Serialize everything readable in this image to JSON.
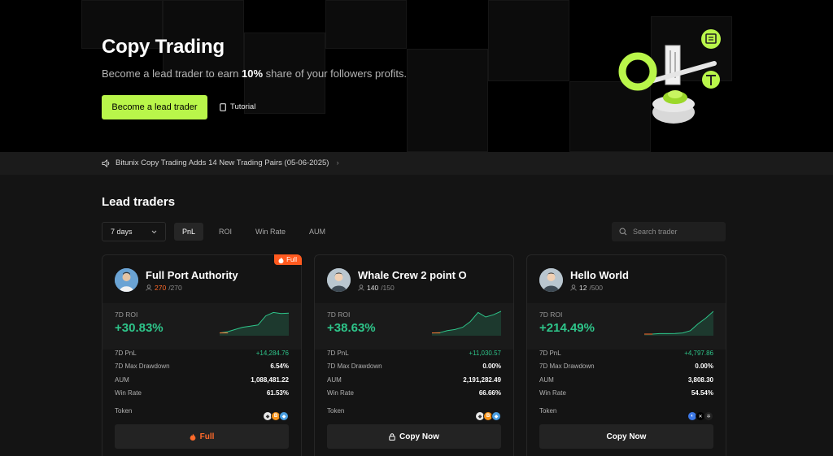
{
  "hero": {
    "title": "Copy Trading",
    "subtitle_before": "Become a lead trader to earn ",
    "subtitle_highlight": "10%",
    "subtitle_after": " share of your followers profits.",
    "cta_label": "Become a lead trader",
    "tutorial_label": "Tutorial",
    "accent_color": "#b9f64a"
  },
  "announcement": {
    "text": "Bitunix Copy Trading Adds 14 New Trading Pairs (05-06-2025)",
    "icon": "speaker-icon"
  },
  "section": {
    "title": "Lead traders",
    "period_value": "7 days",
    "tabs": [
      {
        "label": "PnL",
        "active": true
      },
      {
        "label": "ROI",
        "active": false
      },
      {
        "label": "Win Rate",
        "active": false
      },
      {
        "label": "AUM",
        "active": false
      }
    ],
    "search_placeholder": "Search trader"
  },
  "labels": {
    "roi": "7D ROI",
    "pnl": "7D PnL",
    "drawdown": "7D Max Drawdown",
    "aum": "AUM",
    "win_rate": "Win Rate",
    "token": "Token"
  },
  "traders": [
    {
      "name": "Full Port Authority",
      "followers_current": "270",
      "followers_max": "/270",
      "badge": "Full",
      "roi": "+30.83%",
      "pnl": "+14,284.76",
      "drawdown": "6.54%",
      "aum": "1,088,481.22",
      "win_rate": "61.53%",
      "tokens": [
        "ETH",
        "BTC",
        "ETH2"
      ],
      "action": "Full",
      "roi_series": [
        0.05,
        0.1,
        0.2,
        0.3,
        0.35,
        0.4,
        0.8,
        0.95,
        0.9,
        0.92
      ]
    },
    {
      "name": "Whale Crew 2 point O",
      "followers_current": "140",
      "followers_max": "/150",
      "badge": "",
      "roi": "+38.63%",
      "pnl": "+11,030.57",
      "drawdown": "0.00%",
      "aum": "2,191,282.49",
      "win_rate": "66.66%",
      "tokens": [
        "ETH",
        "BTC",
        "ETH2"
      ],
      "action": "Copy Now",
      "roi_series": [
        0.05,
        0.06,
        0.15,
        0.2,
        0.3,
        0.55,
        0.95,
        0.75,
        0.85,
        1.0
      ]
    },
    {
      "name": "Hello World",
      "followers_current": "12",
      "followers_max": "/500",
      "badge": "",
      "roi": "+214.49%",
      "pnl": "+4,797.86",
      "drawdown": "0.00%",
      "aum": "3,808.30",
      "win_rate": "54.54%",
      "tokens": [
        "SUI",
        "X",
        "ALT"
      ],
      "action": "Copy Now",
      "roi_series": [
        0.0,
        0.0,
        0.02,
        0.02,
        0.03,
        0.05,
        0.15,
        0.45,
        0.7,
        1.0
      ]
    }
  ]
}
